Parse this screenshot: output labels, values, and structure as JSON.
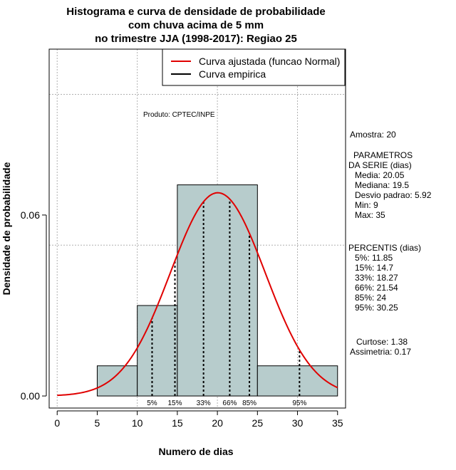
{
  "chart_data": {
    "type": "histogram",
    "title": [
      "Histograma e curva de densidade de probabilidade",
      "com chuva acima de 5 mm",
      "no trimestre JJA (1998-2017): Regiao 25"
    ],
    "xlabel": "Numero de dias",
    "ylabel": "Densidade de probabilidade",
    "xlim": [
      -1,
      36
    ],
    "ylim": [
      -0.004,
      0.115
    ],
    "x_ticks": [
      0,
      5,
      10,
      15,
      20,
      25,
      30,
      35
    ],
    "x_tick_labels": [
      "0",
      "5",
      "10",
      "15",
      "20",
      "25",
      "30",
      "35"
    ],
    "y_ticks": [
      0.0,
      0.06
    ],
    "y_tick_labels": [
      "0.00",
      "0.06"
    ],
    "grid_x": [
      0,
      10,
      20,
      30
    ],
    "grid_y": [
      0.05,
      0.1
    ],
    "bins": [
      {
        "from": 5,
        "to": 10,
        "density": 0.01
      },
      {
        "from": 10,
        "to": 15,
        "density": 0.03
      },
      {
        "from": 15,
        "to": 25,
        "density": 0.07
      },
      {
        "from": 25,
        "to": 35,
        "density": 0.01
      }
    ],
    "normal_curve": {
      "name": "Curva ajustada (funcao Normal)",
      "mean": 20.05,
      "sd": 5.92,
      "color": "#e00000"
    },
    "empirical_curve": {
      "name": "Curva empirica",
      "color": "#000000"
    },
    "percentile_lines": [
      {
        "label": "5%",
        "value": 11.85
      },
      {
        "label": "15%",
        "value": 14.7
      },
      {
        "label": "33%",
        "value": 18.27
      },
      {
        "label": "66%",
        "value": 21.54
      },
      {
        "label": "85%",
        "value": 24
      },
      {
        "label": "95%",
        "value": 30.25
      }
    ],
    "bar_color": "#b7cccc",
    "legend_position": "top-right",
    "product_note": "Produto: CPTEC/INPE",
    "side_text": [
      "Amostra: 20",
      "PARAMETROS",
      "DA SERIE (dias)",
      "Media: 20.05",
      "Mediana: 19.5",
      "Desvio padrao: 5.92",
      "Min: 9",
      "Max: 35",
      "PERCENTIS (dias)",
      "5%: 11.85",
      "15%: 14.7",
      "33%: 18.27",
      "66%: 21.54",
      "85%: 24",
      "95%: 30.25",
      "Curtose: 1.38",
      "Assimetria: 0.17"
    ]
  }
}
